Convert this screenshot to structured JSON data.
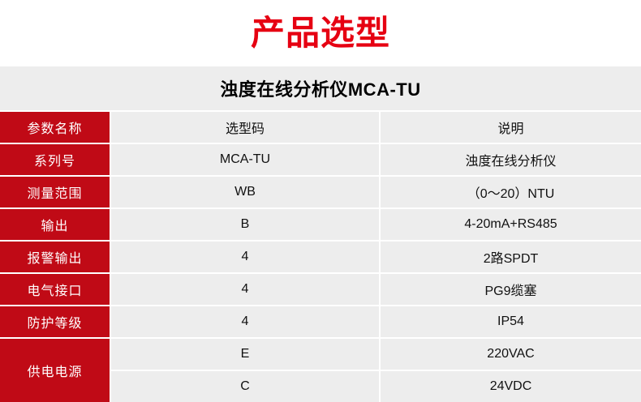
{
  "page": {
    "title": "产品选型",
    "subtitle": "浊度在线分析仪MCA-TU"
  },
  "table": {
    "header": {
      "param": "参数名称",
      "code": "选型码",
      "desc": "说明"
    },
    "rows": [
      {
        "param": "系列号",
        "code": "MCA-TU",
        "desc": "浊度在线分析仪"
      },
      {
        "param": "测量范围",
        "code": "WB",
        "desc": "（0～20）NTU"
      },
      {
        "param": "输出",
        "code": "B",
        "desc": "4-20mA+RS485"
      },
      {
        "param": "报警输出",
        "code": "4",
        "desc": "2路SPDT"
      },
      {
        "param": "电气接口",
        "code": "4",
        "desc": "PG9缆塞"
      },
      {
        "param": "防护等级",
        "code": "4",
        "desc": "IP54"
      },
      {
        "param": "供电电源",
        "options": [
          {
            "code": "E",
            "desc": "220VAC"
          },
          {
            "code": "C",
            "desc": "24VDC"
          }
        ]
      }
    ]
  },
  "colors": {
    "title_red": "#e60012",
    "accent_red": "#c00a16",
    "cell_gray": "#ededed",
    "divider_white": "#ffffff",
    "text_black": "#111111"
  }
}
